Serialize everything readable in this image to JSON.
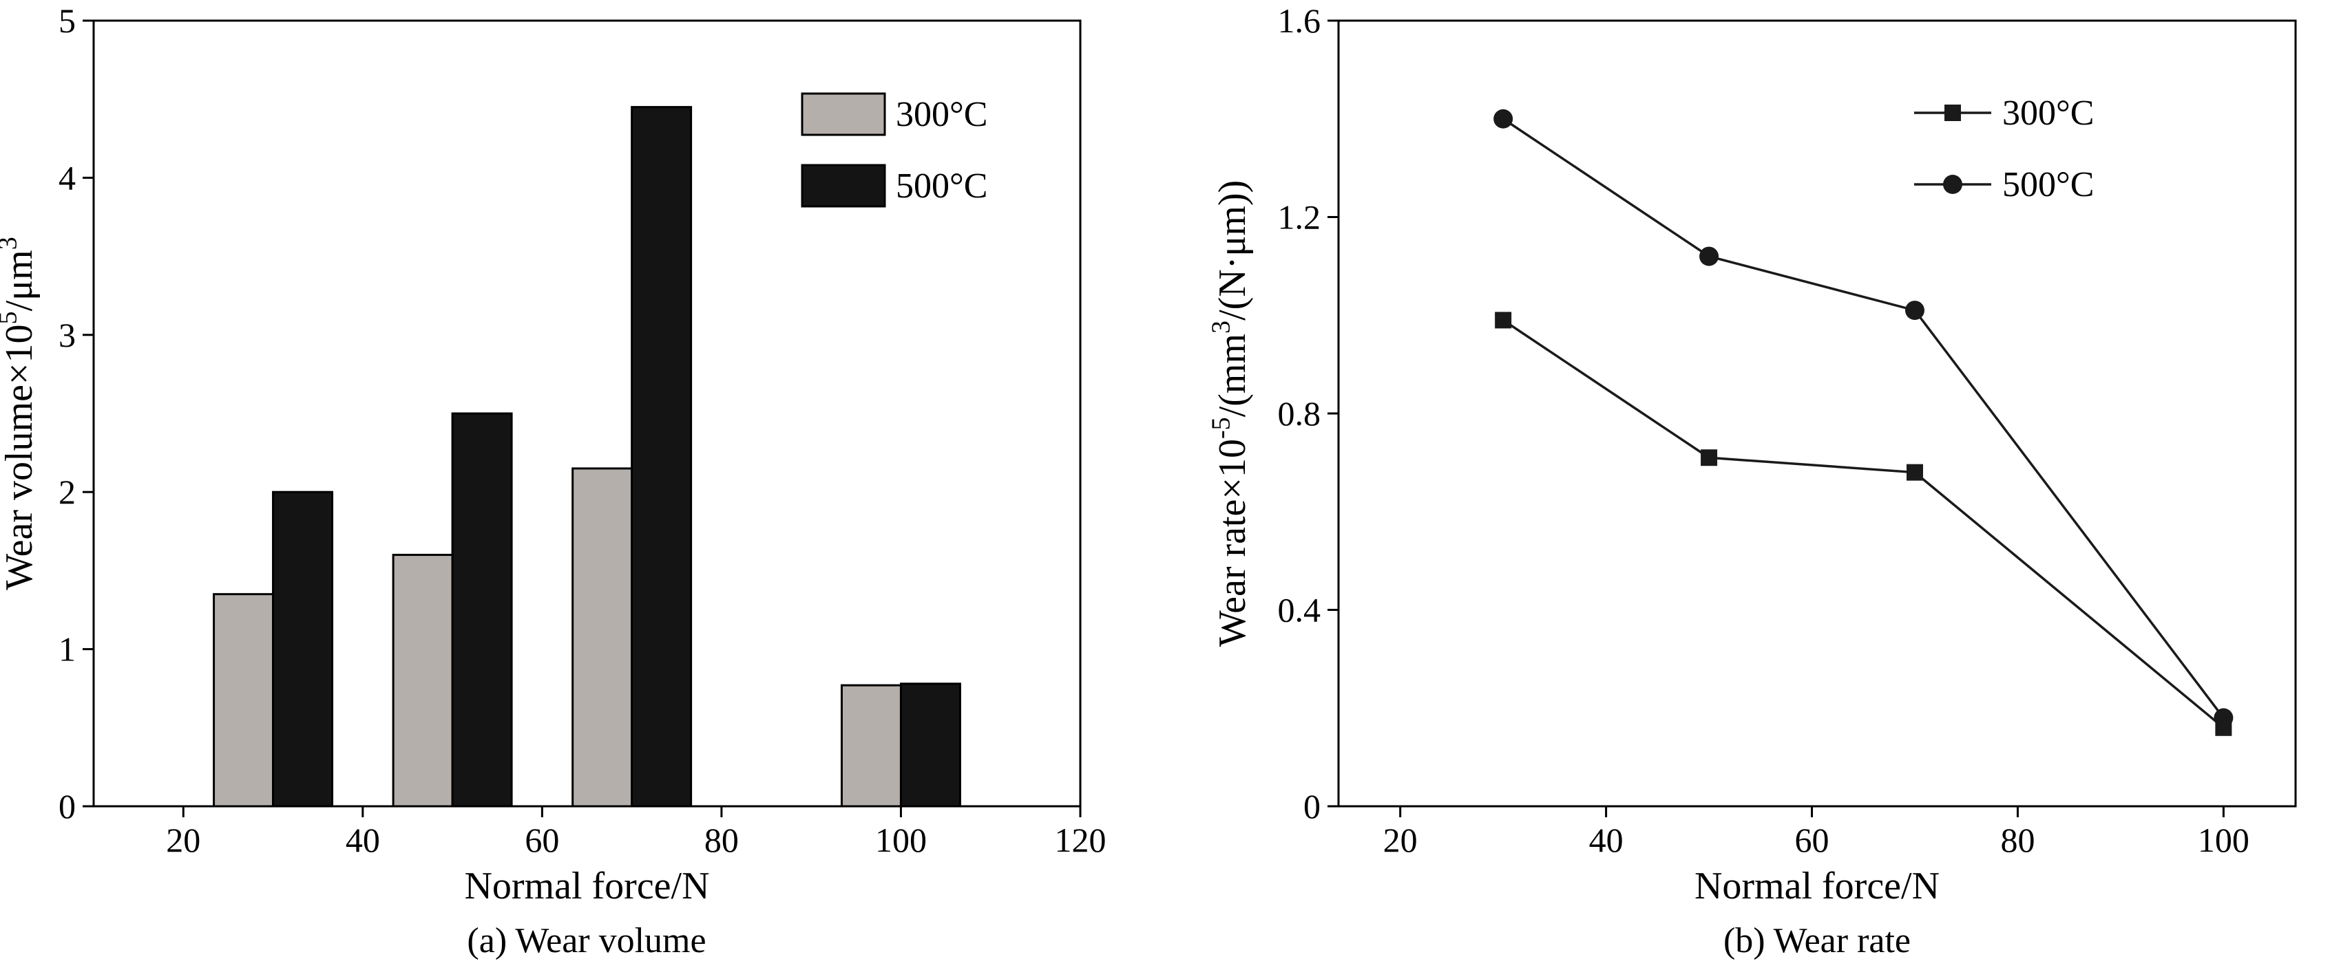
{
  "page": {
    "background": "#ffffff",
    "text_color": "#000000"
  },
  "chart_data": [
    {
      "type": "bar",
      "title": "(a) Wear volume",
      "xlabel": "Normal force/N",
      "ylabel": "Wear volume×10^{5}/μm^{3}",
      "xlim": [
        10,
        120
      ],
      "ylim": [
        0,
        5
      ],
      "xticks": [
        20,
        40,
        60,
        80,
        100,
        120
      ],
      "yticks": [
        0,
        1,
        2,
        3,
        4,
        5
      ],
      "grid": false,
      "legend_position": "top-right",
      "categories": [
        30,
        50,
        70,
        100
      ],
      "bar_width": 6.6,
      "series": [
        {
          "name": "300°C",
          "color": "#b5afac",
          "values": [
            1.35,
            1.6,
            2.15,
            0.77
          ]
        },
        {
          "name": "500°C",
          "color": "#141414",
          "values": [
            2.0,
            2.5,
            4.45,
            0.78
          ]
        }
      ]
    },
    {
      "type": "line",
      "title": "(b) Wear rate",
      "xlabel": "Normal force/N",
      "ylabel": "Wear rate×10^{-5}/(mm^{3}/(N·μm))",
      "xlim": [
        14,
        107
      ],
      "ylim": [
        0,
        1.6
      ],
      "xticks": [
        20,
        40,
        60,
        80,
        100
      ],
      "yticks": [
        0,
        0.4,
        0.8,
        1.2,
        1.6
      ],
      "grid": false,
      "legend_position": "top-right",
      "line_color": "#1a1a1a",
      "x": [
        30,
        50,
        70,
        100
      ],
      "series": [
        {
          "name": "300°C",
          "marker": "square",
          "values": [
            0.99,
            0.71,
            0.68,
            0.16
          ]
        },
        {
          "name": "500°C",
          "marker": "circle",
          "values": [
            1.4,
            1.12,
            1.01,
            0.18
          ]
        }
      ]
    }
  ]
}
